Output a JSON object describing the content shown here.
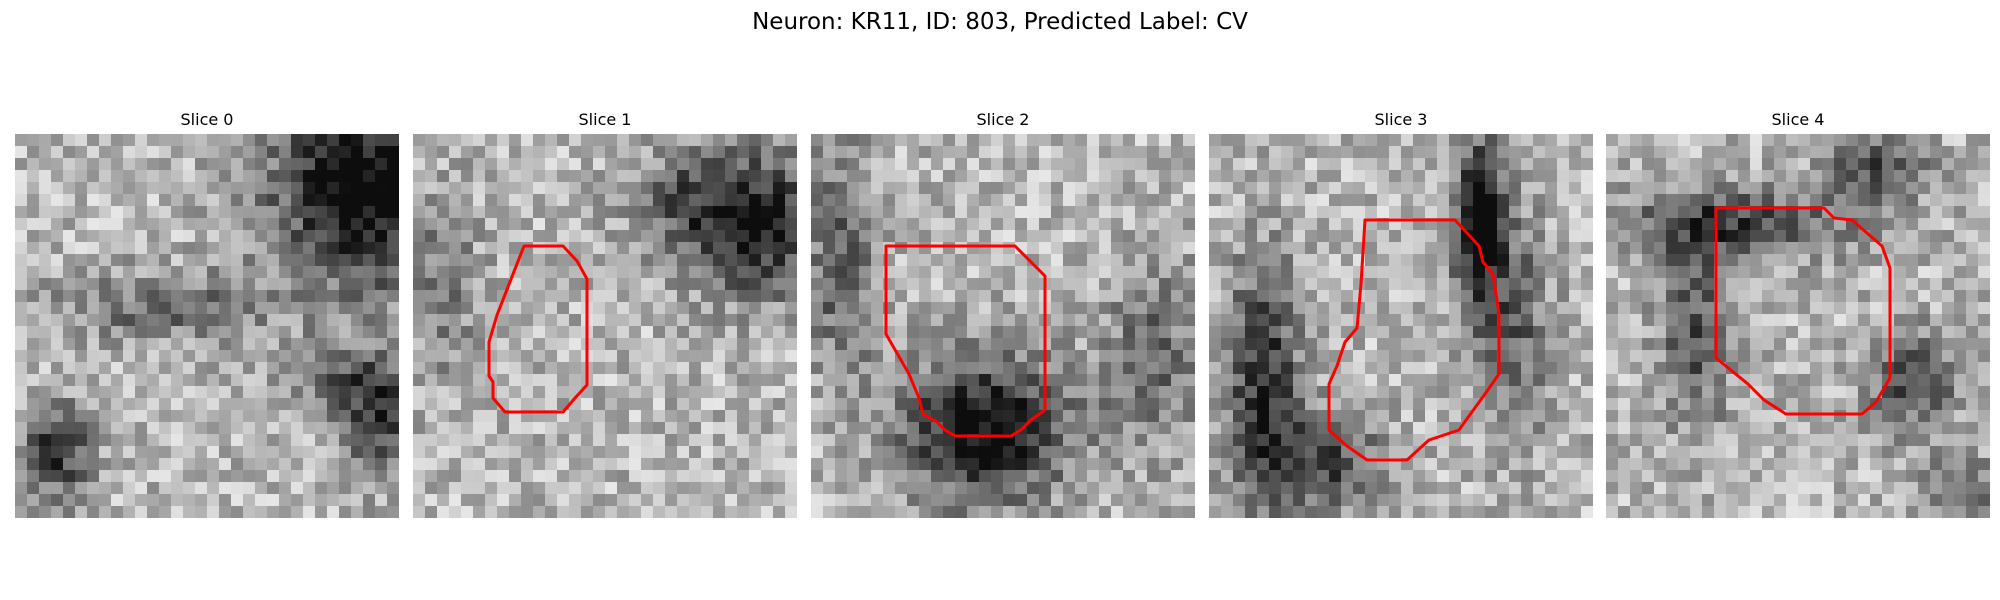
{
  "figure": {
    "title": "Neuron: KR11, ID: 803, Predicted Label: CV",
    "outline_color": "#ff0000",
    "colormap": "grayscale"
  },
  "panels": [
    {
      "title": "Slice 0",
      "seed": 11,
      "has_outline": false
    },
    {
      "title": "Slice 1",
      "seed": 23,
      "has_outline": true
    },
    {
      "title": "Slice 2",
      "seed": 37,
      "has_outline": true
    },
    {
      "title": "Slice 3",
      "seed": 53,
      "has_outline": true
    },
    {
      "title": "Slice 4",
      "seed": 71,
      "has_outline": true
    }
  ]
}
